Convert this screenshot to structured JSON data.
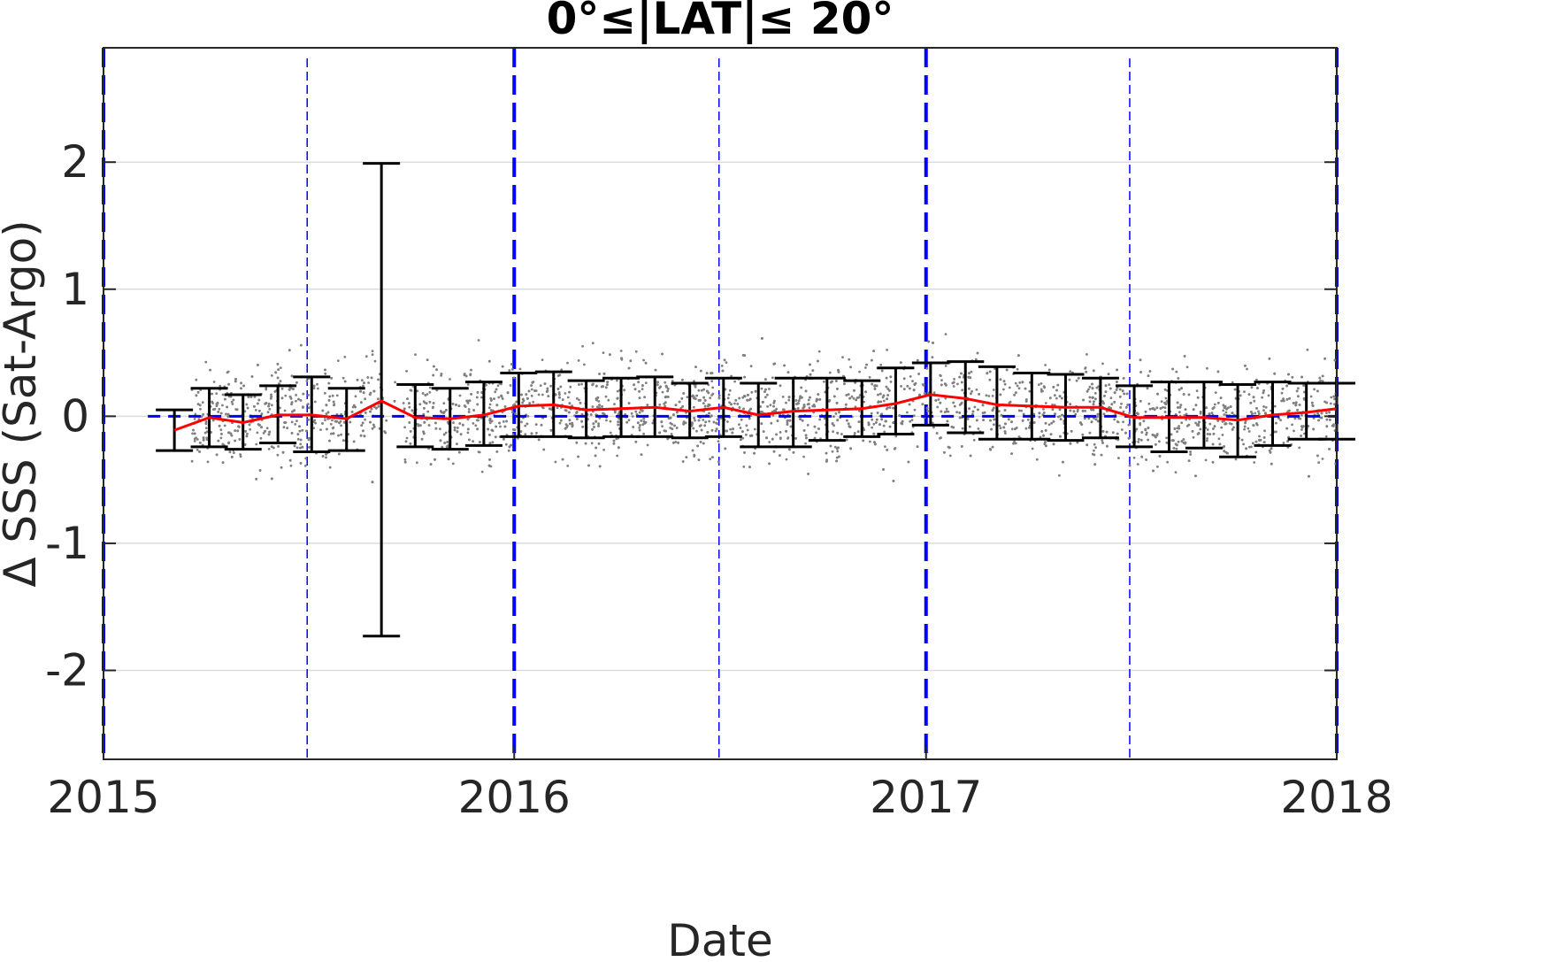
{
  "chart_data": {
    "type": "scatter",
    "title": "0°≤|LAT|≤ 20°",
    "xlabel": "Date",
    "ylabel": "Δ SSS (Sat-Argo)",
    "xlim": [
      "2015-01-01",
      "2018-01-01"
    ],
    "ylim": [
      -2.7,
      2.9
    ],
    "x_ticks": [
      "2015",
      "2016",
      "2017",
      "2018"
    ],
    "y_ticks": [
      -2,
      -1,
      0,
      1,
      2
    ],
    "grid": "horizontal",
    "reference_line": {
      "y": 0,
      "style": "dashed",
      "color": "#0000ff"
    },
    "vertical_markers": {
      "color": "#0000ff",
      "year_starts": [
        "2015-01-01",
        "2016-01-01",
        "2017-01-01",
        "2018-01-01"
      ],
      "mid_years": [
        "2015-07-01",
        "2016-07-01",
        "2017-07-01"
      ]
    },
    "scatter_color": "#808080",
    "series": [
      {
        "type": "line",
        "color": "#ff0000",
        "x": [
          "2015-03-05",
          "2015-04-05",
          "2015-05-05",
          "2015-06-05",
          "2015-07-05",
          "2015-08-05",
          "2015-09-05",
          "2015-10-05",
          "2015-11-05",
          "2015-12-05",
          "2016-01-05",
          "2016-02-05",
          "2016-03-05",
          "2016-04-05",
          "2016-05-05",
          "2016-06-05",
          "2016-07-05",
          "2016-08-05",
          "2016-09-05",
          "2016-10-05",
          "2016-11-05",
          "2016-12-05",
          "2017-01-05",
          "2017-02-05",
          "2017-03-05",
          "2017-04-05",
          "2017-05-05",
          "2017-06-05",
          "2017-07-05",
          "2017-08-05",
          "2017-09-05",
          "2017-10-05",
          "2017-11-05",
          "2017-12-05",
          "2018-01-01"
        ],
        "values": [
          -0.11,
          -0.01,
          -0.05,
          0.01,
          0.01,
          -0.02,
          0.12,
          -0.01,
          -0.02,
          0.01,
          0.08,
          0.09,
          0.05,
          0.06,
          0.07,
          0.04,
          0.07,
          0.01,
          0.04,
          0.05,
          0.06,
          0.1,
          0.17,
          0.14,
          0.09,
          0.08,
          0.07,
          0.07,
          -0.01,
          -0.01,
          -0.01,
          -0.03,
          0.01,
          0.03,
          0.06
        ]
      },
      {
        "type": "errorbar",
        "color": "#000000",
        "x": [
          "2015-03-05",
          "2015-04-05",
          "2015-05-05",
          "2015-06-05",
          "2015-07-05",
          "2015-08-05",
          "2015-09-05",
          "2015-10-05",
          "2015-11-05",
          "2015-12-05",
          "2016-01-05",
          "2016-02-05",
          "2016-03-05",
          "2016-04-05",
          "2016-05-05",
          "2016-06-05",
          "2016-07-05",
          "2016-08-05",
          "2016-09-05",
          "2016-10-05",
          "2016-11-05",
          "2016-12-05",
          "2017-01-05",
          "2017-02-05",
          "2017-03-05",
          "2017-04-05",
          "2017-05-05",
          "2017-06-05",
          "2017-07-05",
          "2017-08-05",
          "2017-09-05",
          "2017-10-05",
          "2017-11-05",
          "2017-12-05",
          "2018-01-01"
        ],
        "upper": [
          0.05,
          0.22,
          0.17,
          0.24,
          0.31,
          0.22,
          1.99,
          0.25,
          0.22,
          0.27,
          0.34,
          0.35,
          0.28,
          0.3,
          0.31,
          0.26,
          0.3,
          0.26,
          0.3,
          0.3,
          0.28,
          0.38,
          0.42,
          0.43,
          0.39,
          0.34,
          0.33,
          0.3,
          0.24,
          0.27,
          0.27,
          0.25,
          0.27,
          0.26,
          0.26
        ],
        "lower": [
          -0.27,
          -0.24,
          -0.26,
          -0.21,
          -0.28,
          -0.27,
          -1.73,
          -0.24,
          -0.26,
          -0.23,
          -0.16,
          -0.16,
          -0.17,
          -0.16,
          -0.16,
          -0.17,
          -0.16,
          -0.24,
          -0.24,
          -0.19,
          -0.16,
          -0.14,
          -0.07,
          -0.13,
          -0.18,
          -0.18,
          -0.19,
          -0.17,
          -0.24,
          -0.28,
          -0.25,
          -0.32,
          -0.23,
          -0.18,
          -0.18
        ]
      }
    ]
  }
}
